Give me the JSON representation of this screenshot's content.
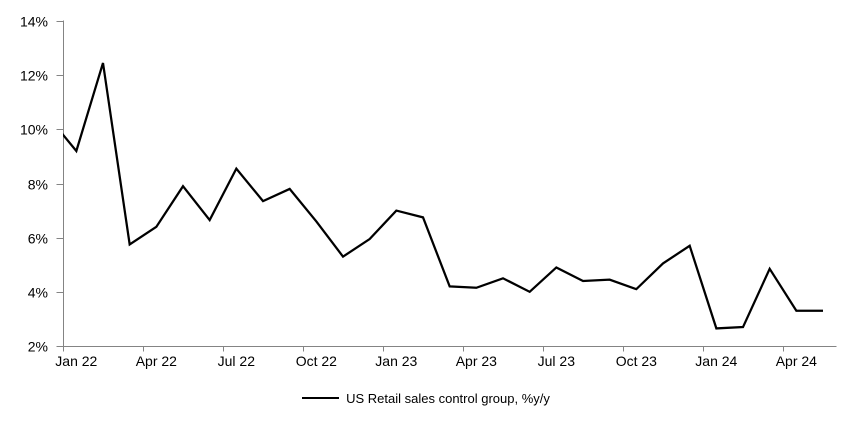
{
  "chart_data": {
    "type": "line",
    "title": "",
    "legend_position": "bottom-center",
    "grid": false,
    "line_color": "#000000",
    "axis_color": "#848484",
    "ylim": [
      2,
      14
    ],
    "y_ticks": [
      "2%",
      "4%",
      "6%",
      "8%",
      "10%",
      "12%",
      "14%"
    ],
    "y_tick_values": [
      2,
      4,
      6,
      8,
      10,
      12,
      14
    ],
    "x_tick_labels": [
      "Jan 22",
      "Apr 22",
      "Jul 22",
      "Oct 22",
      "Jan 23",
      "Apr 23",
      "Jul 23",
      "Oct 23",
      "Jan 24",
      "Apr 24"
    ],
    "x": [
      "Dec 21",
      "Jan 22",
      "Feb 22",
      "Mar 22",
      "Apr 22",
      "May 22",
      "Jun 22",
      "Jul 22",
      "Aug 22",
      "Sep 22",
      "Oct 22",
      "Nov 22",
      "Dec 22",
      "Jan 23",
      "Feb 23",
      "Mar 23",
      "Apr 23",
      "May 23",
      "Jun 23",
      "Jul 23",
      "Aug 23",
      "Sep 23",
      "Oct 23",
      "Nov 23",
      "Dec 23",
      "Jan 24",
      "Feb 24",
      "Mar 24",
      "Apr 24",
      "May 24"
    ],
    "first_point_clipped_at_left_axis": true,
    "series": [
      {
        "name": "US Retail sales control group, %y/y",
        "color": "#000000",
        "values": [
          10.4,
          9.2,
          12.45,
          5.75,
          6.4,
          7.9,
          6.65,
          8.55,
          7.35,
          7.8,
          6.6,
          5.3,
          5.95,
          7.0,
          6.75,
          4.2,
          4.15,
          4.5,
          4.0,
          4.9,
          4.4,
          4.45,
          4.1,
          5.05,
          5.7,
          2.65,
          2.7,
          4.85,
          3.3,
          3.3
        ]
      }
    ]
  }
}
